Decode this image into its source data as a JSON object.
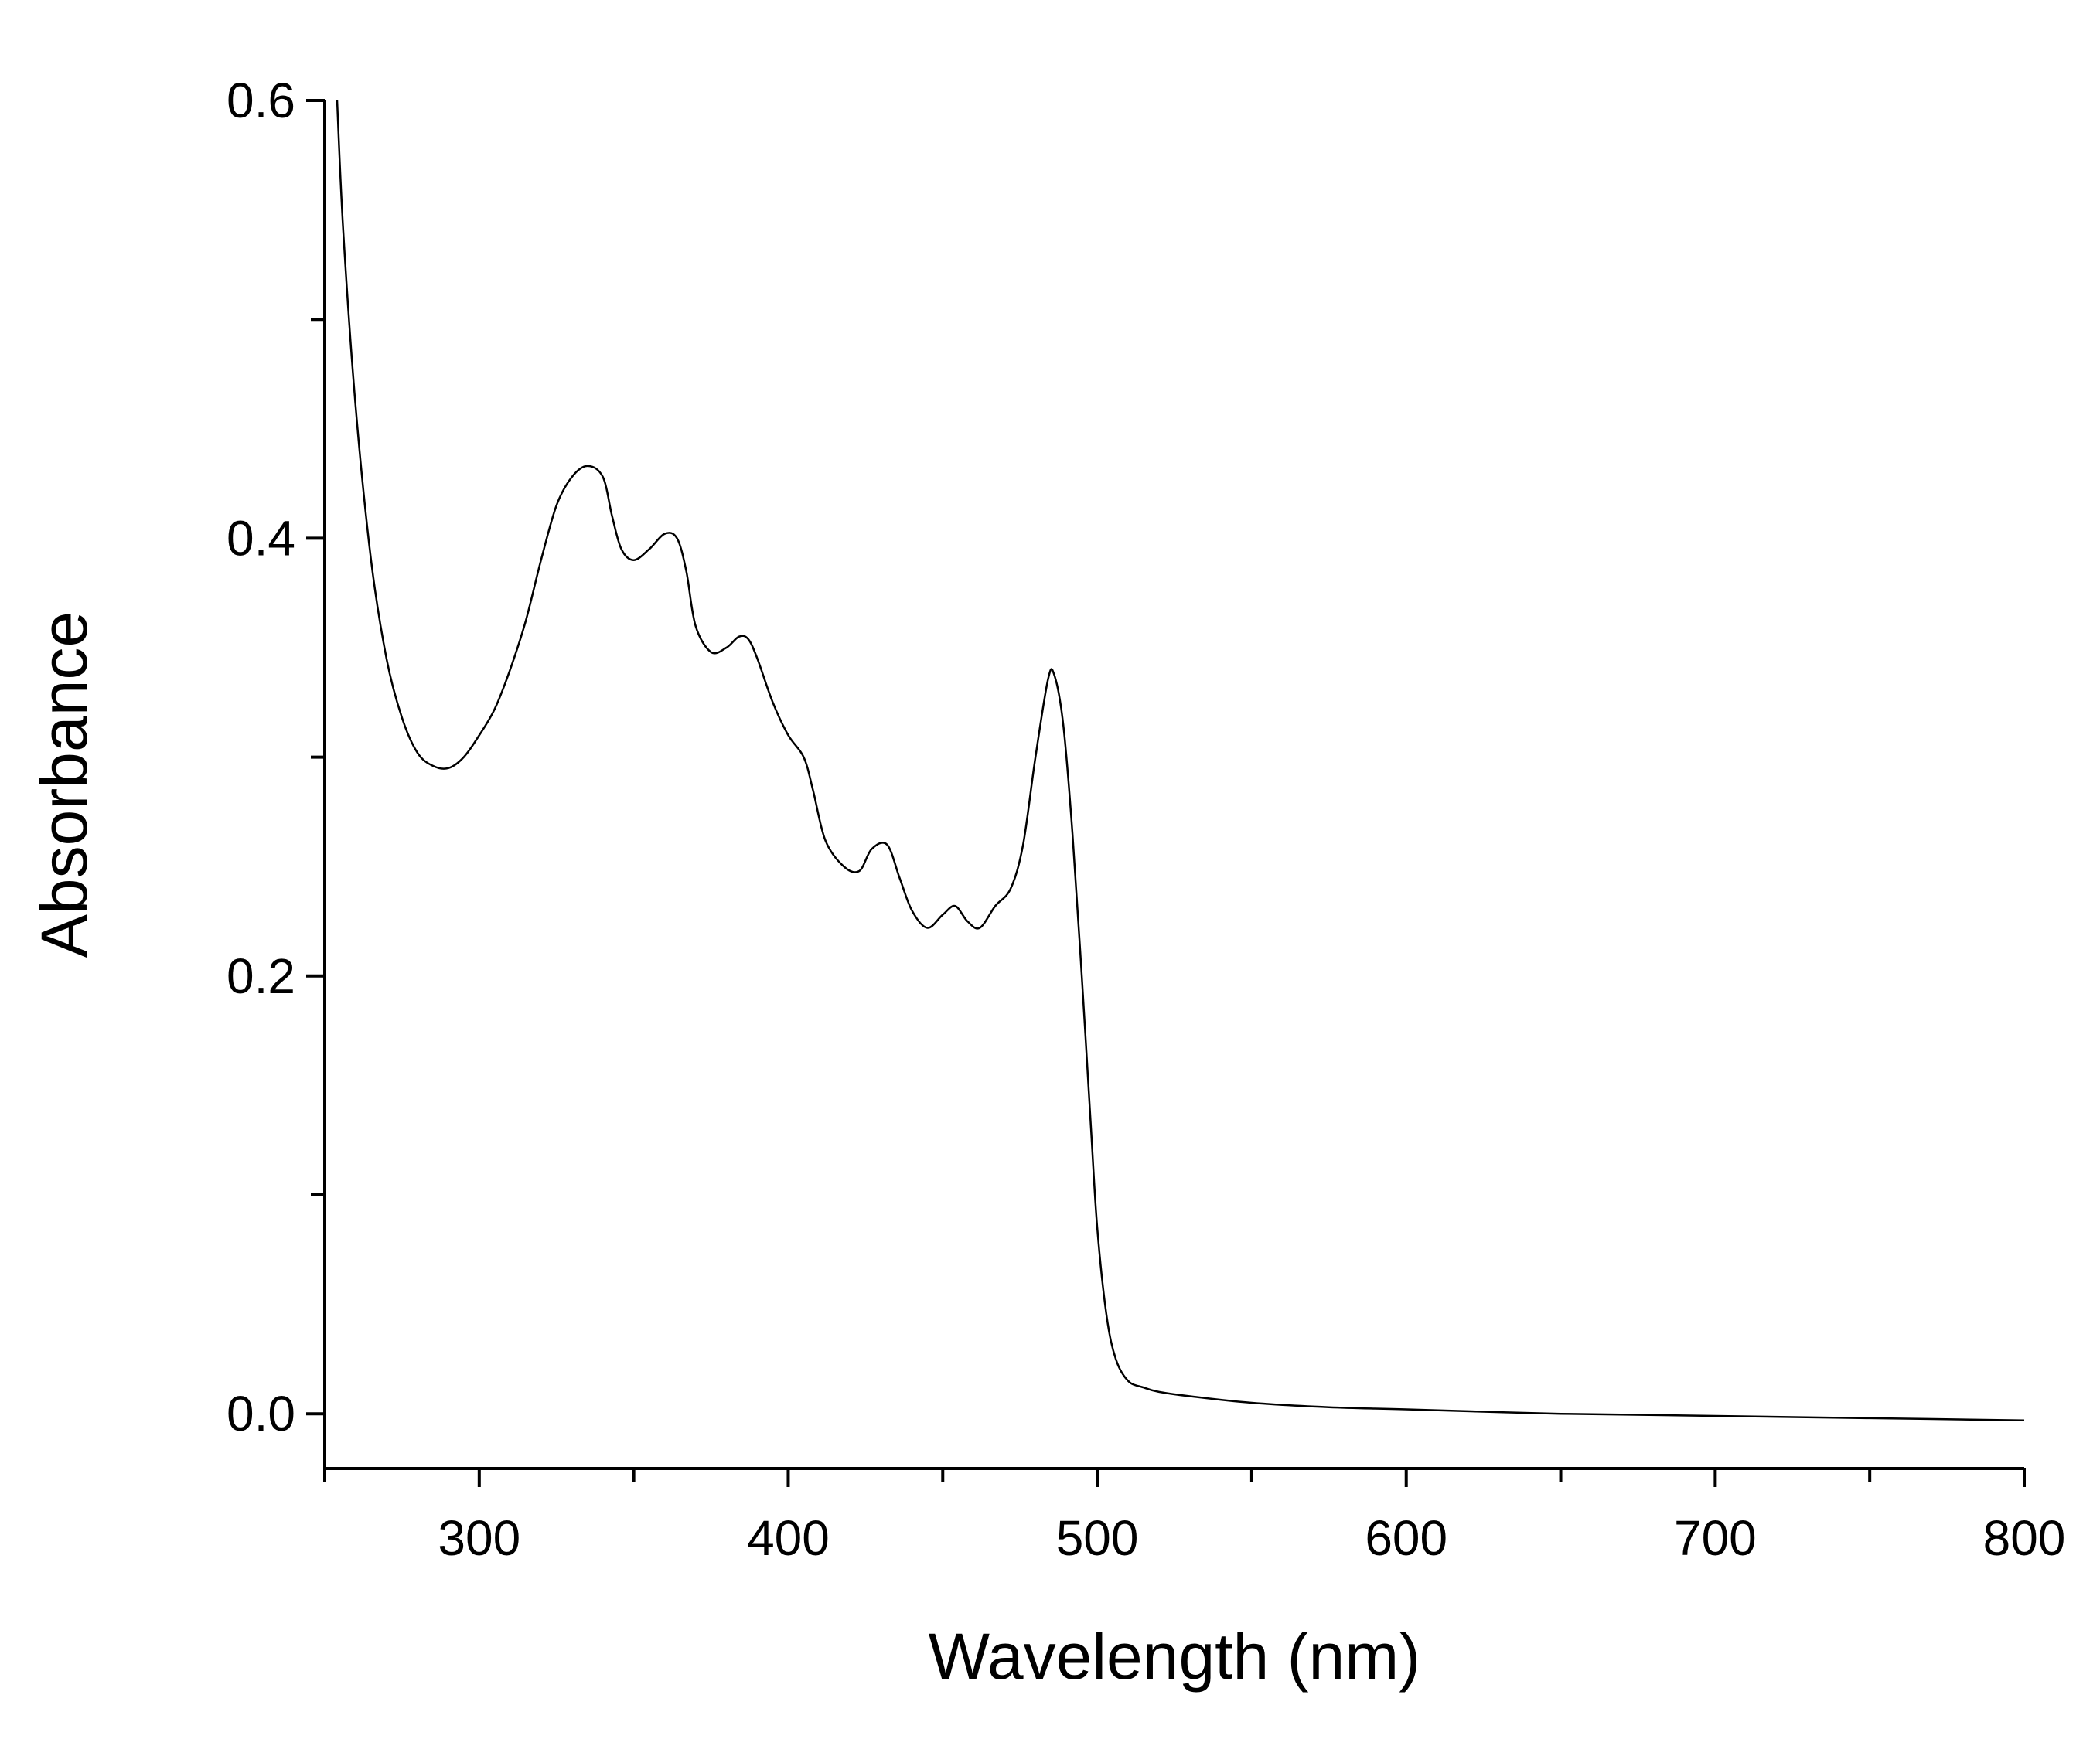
{
  "chart_data": {
    "type": "line",
    "xlabel": "Wavelength (nm)",
    "ylabel": "Absorbance",
    "xlim": [
      250,
      800
    ],
    "ylim": [
      -0.025,
      0.6
    ],
    "x_ticks": [
      300,
      400,
      500,
      600,
      700,
      800
    ],
    "x_tick_labels": [
      "300",
      "400",
      "500",
      "600",
      "700",
      "800"
    ],
    "x_minor_ticks": [
      250,
      350,
      450,
      550,
      650,
      750
    ],
    "y_ticks": [
      0.0,
      0.2,
      0.4,
      0.6
    ],
    "y_tick_labels": [
      "0.0",
      "0.2",
      "0.4",
      "0.6"
    ],
    "y_minor_ticks": [
      0.1,
      0.3,
      0.5
    ],
    "grid": false,
    "line_color": "#000000",
    "series": [
      {
        "x": [
          254,
          256,
          260,
          265,
          270,
          275,
          280,
          285,
          290,
          295,
          300,
          305,
          310,
          315,
          320,
          325,
          330,
          335,
          340,
          343,
          346,
          350,
          355,
          360,
          364,
          367,
          370,
          375,
          380,
          384,
          387,
          390,
          395,
          400,
          405,
          408,
          412,
          418,
          423,
          427,
          432,
          436,
          440,
          445,
          450,
          454,
          458,
          462,
          467,
          472,
          476,
          480,
          484,
          486,
          489,
          492,
          495,
          498,
          500,
          503,
          506,
          510,
          515,
          520,
          530,
          550,
          575,
          600,
          650,
          700,
          750,
          800
        ],
        "y": [
          0.6,
          0.54,
          0.46,
          0.39,
          0.345,
          0.318,
          0.302,
          0.296,
          0.295,
          0.3,
          0.31,
          0.322,
          0.34,
          0.362,
          0.39,
          0.415,
          0.428,
          0.433,
          0.428,
          0.41,
          0.395,
          0.39,
          0.395,
          0.402,
          0.4,
          0.385,
          0.36,
          0.348,
          0.35,
          0.355,
          0.354,
          0.345,
          0.325,
          0.31,
          0.3,
          0.285,
          0.262,
          0.25,
          0.248,
          0.258,
          0.26,
          0.245,
          0.23,
          0.222,
          0.228,
          0.232,
          0.225,
          0.222,
          0.232,
          0.24,
          0.26,
          0.3,
          0.335,
          0.338,
          0.315,
          0.265,
          0.2,
          0.13,
          0.085,
          0.045,
          0.025,
          0.015,
          0.012,
          0.01,
          0.008,
          0.005,
          0.003,
          0.002,
          0.0,
          -0.001,
          -0.002,
          -0.003
        ]
      }
    ]
  }
}
